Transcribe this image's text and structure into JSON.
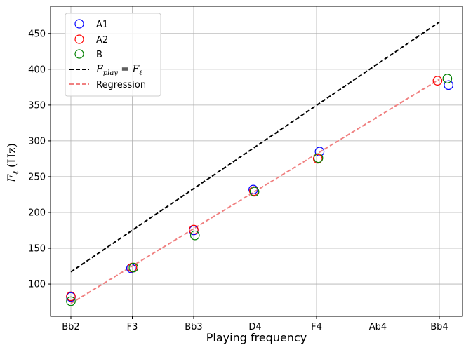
{
  "chart_data": {
    "type": "scatter",
    "xlabel": "Playing frequency",
    "ylabel": "F_ℓ (Hz)",
    "x_categories": [
      "Bb2",
      "F3",
      "Bb3",
      "D4",
      "F4",
      "Ab4",
      "Bb4"
    ],
    "ylim": [
      55,
      488
    ],
    "yticks": [
      100,
      150,
      200,
      250,
      300,
      350,
      400,
      450
    ],
    "grid": true,
    "legend_position": "top-left",
    "series": [
      {
        "name": "A1",
        "marker": "circle-open",
        "color": "#0000ff",
        "points": [
          {
            "x": 0.0,
            "y": 82
          },
          {
            "x": 0.98,
            "y": 122
          },
          {
            "x": 2.0,
            "y": 175
          },
          {
            "x": 2.97,
            "y": 232
          },
          {
            "x": 4.05,
            "y": 285
          },
          {
            "x": 6.15,
            "y": 378
          }
        ]
      },
      {
        "name": "A2",
        "marker": "circle-open",
        "color": "#ff0000",
        "points": [
          {
            "x": 0.0,
            "y": 83
          },
          {
            "x": 1.0,
            "y": 123
          },
          {
            "x": 2.0,
            "y": 176
          },
          {
            "x": 2.98,
            "y": 230
          },
          {
            "x": 4.02,
            "y": 275
          },
          {
            "x": 5.97,
            "y": 384
          }
        ]
      },
      {
        "name": "B",
        "marker": "circle-open",
        "color": "#008000",
        "points": [
          {
            "x": 0.0,
            "y": 76
          },
          {
            "x": 1.02,
            "y": 123
          },
          {
            "x": 2.02,
            "y": 168
          },
          {
            "x": 2.99,
            "y": 229
          },
          {
            "x": 4.03,
            "y": 276
          },
          {
            "x": 6.13,
            "y": 387
          }
        ]
      }
    ],
    "lines": [
      {
        "name": "F_play = F_ℓ",
        "style": "dashed",
        "color": "#000000",
        "points": [
          {
            "x": 0.0,
            "y": 117
          },
          {
            "x": 6.0,
            "y": 466
          }
        ]
      },
      {
        "name": "Regression",
        "style": "dashed",
        "color": "#f08080",
        "points": [
          {
            "x": 0.0,
            "y": 73
          },
          {
            "x": 6.0,
            "y": 386
          }
        ]
      }
    ]
  }
}
